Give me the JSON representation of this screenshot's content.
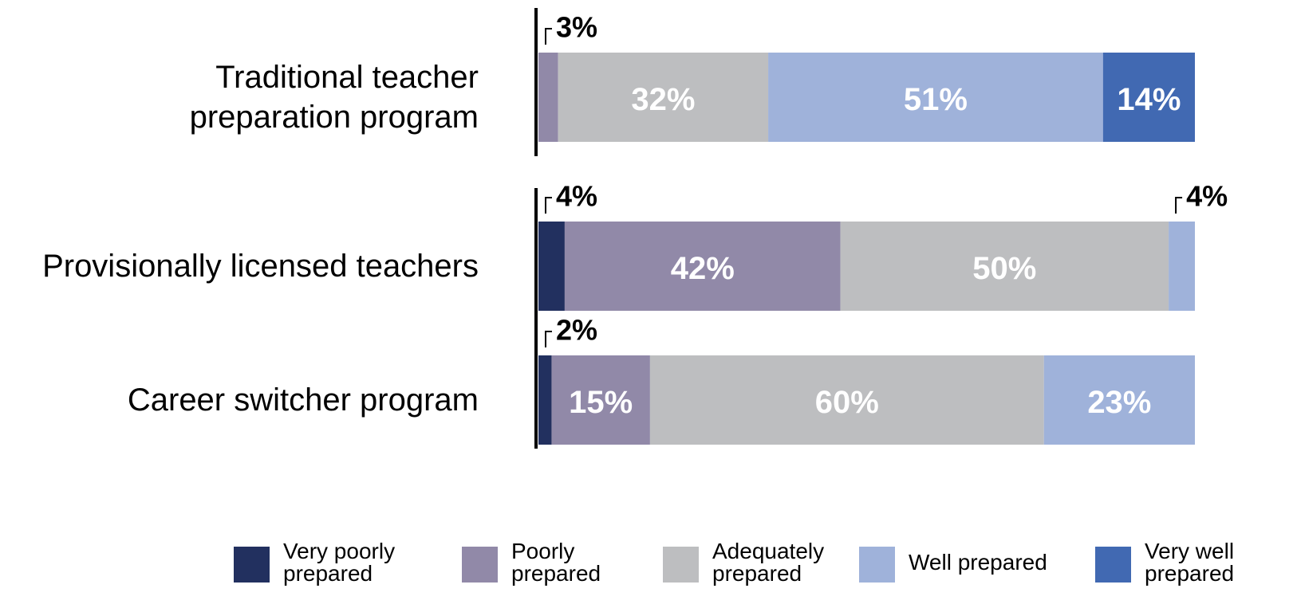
{
  "chart_data": {
    "type": "bar",
    "orientation": "horizontal",
    "stacked": true,
    "categories": [
      "Traditional teacher preparation program",
      "Provisionally licensed teachers",
      "Career switcher program"
    ],
    "xlim": [
      0,
      100
    ],
    "series": [
      {
        "name": "Very poorly prepared",
        "color": "#22305f",
        "values": [
          null,
          4,
          2
        ],
        "value_labels": [
          null,
          "4%",
          "2%"
        ]
      },
      {
        "name": "Poorly prepared",
        "color": "#9189a8",
        "values": [
          3,
          42,
          15
        ],
        "value_labels": [
          "3%",
          "42%",
          "15%"
        ]
      },
      {
        "name": "Adequately prepared",
        "color": "#bdbec0",
        "values": [
          32,
          50,
          60
        ],
        "value_labels": [
          "32%",
          "50%",
          "60%"
        ]
      },
      {
        "name": "Well prepared",
        "color": "#9fb2da",
        "values": [
          51,
          4,
          23
        ],
        "value_labels": [
          "51%",
          "4%",
          "23%"
        ]
      },
      {
        "name": "Very well prepared",
        "color": "#4169b2",
        "values": [
          14,
          null,
          null
        ],
        "value_labels": [
          "14%",
          null,
          null
        ]
      }
    ]
  }
}
